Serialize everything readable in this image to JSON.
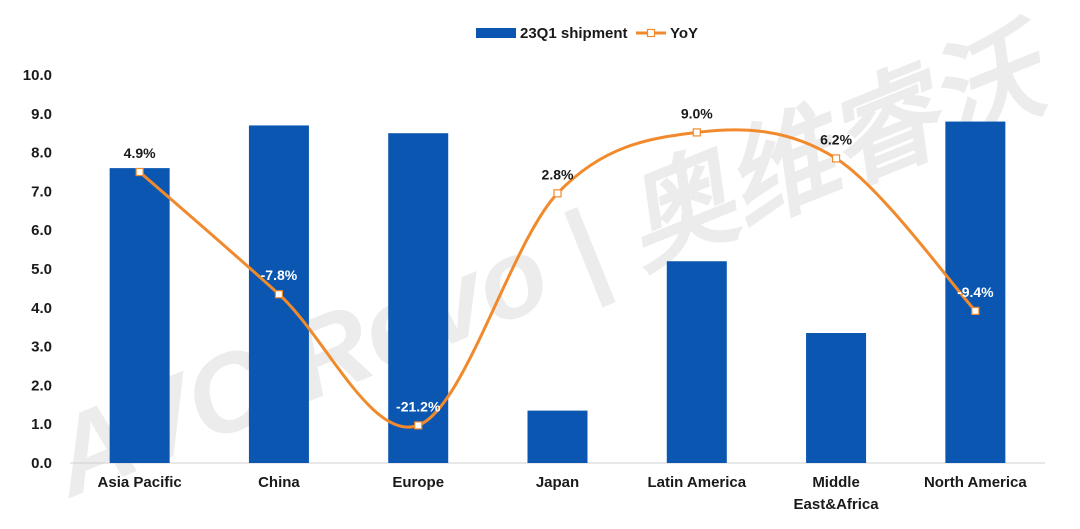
{
  "chart_data": {
    "type": "bar",
    "categories": [
      "Asia Pacific",
      "China",
      "Europe",
      "Japan",
      "Latin America",
      "Middle East&Africa",
      "North America"
    ],
    "category_lines": [
      [
        "Asia Pacific"
      ],
      [
        "China"
      ],
      [
        "Europe"
      ],
      [
        "Japan"
      ],
      [
        "Latin America"
      ],
      [
        "Middle",
        "East&Africa"
      ],
      [
        "North America"
      ]
    ],
    "series": [
      {
        "name": "23Q1 shipment",
        "type": "bar",
        "color": "#0a56b0",
        "values": [
          7.6,
          8.7,
          8.5,
          1.35,
          5.2,
          3.35,
          8.8
        ]
      },
      {
        "name": "YoY",
        "type": "line",
        "smooth": true,
        "color": "#f08a2c",
        "values": [
          7.5,
          4.35,
          0.97,
          6.95,
          8.52,
          7.85,
          3.92
        ],
        "labels": [
          "4.9%",
          "-7.8%",
          "-21.2%",
          "2.8%",
          "9.0%",
          "6.2%",
          "-9.4%"
        ],
        "label_colors": [
          "#1a1a1a",
          "#ffffff",
          "#ffffff",
          "#1a1a1a",
          "#1a1a1a",
          "#1a1a1a",
          "#ffffff"
        ]
      }
    ],
    "ylim": [
      0,
      10
    ],
    "yticks": [
      "0.0",
      "1.0",
      "2.0",
      "3.0",
      "4.0",
      "5.0",
      "6.0",
      "7.0",
      "8.0",
      "9.0",
      "10.0"
    ],
    "grid": false,
    "legend": "top-center",
    "watermark": "AVC Revo | 奥维睿沃"
  }
}
